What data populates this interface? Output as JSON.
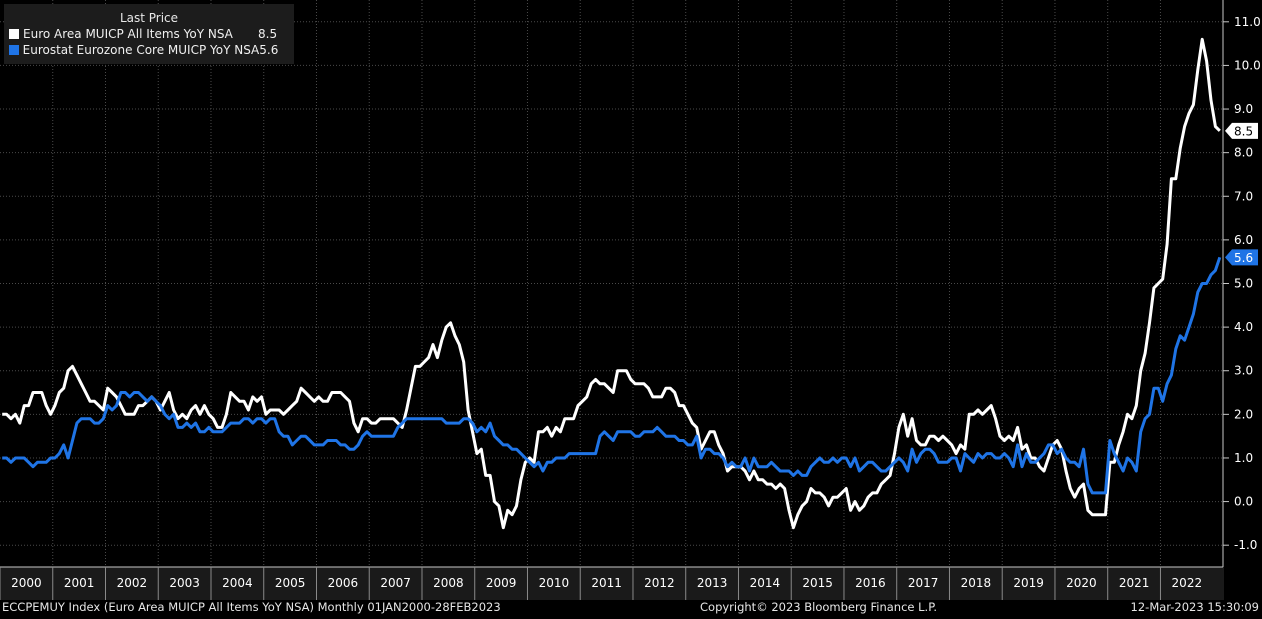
{
  "legend": {
    "title": "Last Price",
    "items": [
      {
        "name": "Euro Area MUICP All Items YoY NSA",
        "value": "8.5",
        "color": "#ffffff"
      },
      {
        "name": "Eurostat Eurozone Core MUICP YoY NSA",
        "value": "5.6",
        "color": "#1f74e6"
      }
    ]
  },
  "footer": {
    "left": "ECCPEMUY Index (Euro Area MUICP All Items YoY NSA)  Monthly 01JAN2000-28FEB2023",
    "center": "Copyright© 2023 Bloomberg Finance L.P.",
    "right": "12-Mar-2023 15:30:09"
  },
  "chart_data": {
    "type": "line",
    "ylim": [
      -1.5,
      11.5
    ],
    "yticks": [
      -1.0,
      0.0,
      1.0,
      2.0,
      3.0,
      4.0,
      5.0,
      6.0,
      7.0,
      8.0,
      9.0,
      10.0,
      11.0
    ],
    "ytick_labels": [
      "-1.0",
      "0.0",
      "1.0",
      "2.0",
      "3.0",
      "4.0",
      "5.0",
      "6.0",
      "7.0",
      "8.0",
      "9.0",
      "10.0",
      "11.0"
    ],
    "x_start": "2000-01",
    "x_end": "2023-02",
    "year_labels": [
      "2000",
      "2001",
      "2002",
      "2003",
      "2004",
      "2005",
      "2006",
      "2007",
      "2008",
      "2009",
      "2010",
      "2011",
      "2012",
      "2013",
      "2014",
      "2015",
      "2016",
      "2017",
      "2018",
      "2019",
      "2020",
      "2021",
      "2022"
    ],
    "series": [
      {
        "name": "Euro Area MUICP All Items YoY NSA",
        "color": "#ffffff",
        "last_label": "8.5",
        "values": [
          2.0,
          2.0,
          1.9,
          2.0,
          1.8,
          2.2,
          2.2,
          2.5,
          2.5,
          2.5,
          2.2,
          2.0,
          2.2,
          2.5,
          2.6,
          3.0,
          3.1,
          2.9,
          2.7,
          2.5,
          2.3,
          2.3,
          2.2,
          2.1,
          2.6,
          2.5,
          2.4,
          2.2,
          2.0,
          2.0,
          2.0,
          2.2,
          2.2,
          2.3,
          2.4,
          2.3,
          2.1,
          2.3,
          2.5,
          2.1,
          1.9,
          2.0,
          1.9,
          2.1,
          2.2,
          2.0,
          2.2,
          2.0,
          1.9,
          1.7,
          1.7,
          2.0,
          2.5,
          2.4,
          2.3,
          2.3,
          2.1,
          2.4,
          2.3,
          2.4,
          2.0,
          2.1,
          2.1,
          2.1,
          2.0,
          2.1,
          2.2,
          2.3,
          2.6,
          2.5,
          2.4,
          2.3,
          2.4,
          2.3,
          2.3,
          2.5,
          2.5,
          2.5,
          2.4,
          2.3,
          1.8,
          1.6,
          1.9,
          1.9,
          1.8,
          1.8,
          1.9,
          1.9,
          1.9,
          1.9,
          1.8,
          1.7,
          2.1,
          2.6,
          3.1,
          3.1,
          3.2,
          3.3,
          3.6,
          3.3,
          3.7,
          4.0,
          4.1,
          3.8,
          3.6,
          3.2,
          2.1,
          1.6,
          1.1,
          1.2,
          0.6,
          0.6,
          0.0,
          -0.1,
          -0.6,
          -0.2,
          -0.3,
          -0.1,
          0.5,
          0.9,
          1.0,
          0.9,
          1.6,
          1.6,
          1.7,
          1.5,
          1.7,
          1.6,
          1.9,
          1.9,
          1.9,
          2.2,
          2.3,
          2.4,
          2.7,
          2.8,
          2.7,
          2.7,
          2.6,
          2.5,
          3.0,
          3.0,
          3.0,
          2.8,
          2.7,
          2.7,
          2.7,
          2.6,
          2.4,
          2.4,
          2.4,
          2.6,
          2.6,
          2.5,
          2.2,
          2.2,
          2.0,
          1.8,
          1.7,
          1.2,
          1.4,
          1.6,
          1.6,
          1.3,
          1.1,
          0.7,
          0.8,
          0.8,
          0.8,
          0.7,
          0.5,
          0.7,
          0.5,
          0.5,
          0.4,
          0.4,
          0.3,
          0.4,
          0.3,
          -0.2,
          -0.6,
          -0.3,
          -0.1,
          0.0,
          0.3,
          0.2,
          0.2,
          0.1,
          -0.1,
          0.1,
          0.1,
          0.2,
          0.3,
          -0.2,
          0.0,
          -0.2,
          -0.1,
          0.1,
          0.2,
          0.2,
          0.4,
          0.5,
          0.6,
          1.1,
          1.7,
          2.0,
          1.5,
          1.9,
          1.4,
          1.3,
          1.3,
          1.5,
          1.5,
          1.4,
          1.5,
          1.4,
          1.3,
          1.1,
          1.3,
          1.2,
          2.0,
          2.0,
          2.1,
          2.0,
          2.1,
          2.2,
          1.9,
          1.5,
          1.4,
          1.5,
          1.4,
          1.7,
          1.2,
          1.3,
          1.0,
          1.0,
          0.8,
          0.7,
          1.0,
          1.3,
          1.4,
          1.2,
          0.7,
          0.3,
          0.1,
          0.3,
          0.4,
          -0.2,
          -0.3,
          -0.3,
          -0.3,
          -0.3,
          0.9,
          0.9,
          1.3,
          1.6,
          2.0,
          1.9,
          2.2,
          3.0,
          3.4,
          4.1,
          4.9,
          5.0,
          5.1,
          5.9,
          7.4,
          7.4,
          8.1,
          8.6,
          8.9,
          9.1,
          9.9,
          10.6,
          10.1,
          9.2,
          8.6,
          8.5
        ]
      },
      {
        "name": "Eurostat Eurozone Core MUICP YoY NSA",
        "color": "#1f74e6",
        "last_label": "5.6",
        "values": [
          1.0,
          1.0,
          0.9,
          1.0,
          1.0,
          1.0,
          0.9,
          0.8,
          0.9,
          0.9,
          0.9,
          1.0,
          1.0,
          1.1,
          1.3,
          1.0,
          1.4,
          1.8,
          1.9,
          1.9,
          1.9,
          1.8,
          1.8,
          1.9,
          2.2,
          2.1,
          2.2,
          2.5,
          2.5,
          2.4,
          2.5,
          2.5,
          2.4,
          2.3,
          2.4,
          2.3,
          2.2,
          2.0,
          1.9,
          2.0,
          1.7,
          1.7,
          1.8,
          1.7,
          1.8,
          1.6,
          1.6,
          1.7,
          1.6,
          1.6,
          1.6,
          1.7,
          1.8,
          1.8,
          1.8,
          1.9,
          1.9,
          1.8,
          1.9,
          1.9,
          1.8,
          1.9,
          1.9,
          1.6,
          1.5,
          1.5,
          1.3,
          1.4,
          1.5,
          1.5,
          1.4,
          1.3,
          1.3,
          1.3,
          1.4,
          1.4,
          1.4,
          1.3,
          1.3,
          1.2,
          1.2,
          1.3,
          1.5,
          1.6,
          1.5,
          1.5,
          1.5,
          1.5,
          1.5,
          1.5,
          1.7,
          1.8,
          1.9,
          1.9,
          1.9,
          1.9,
          1.9,
          1.9,
          1.9,
          1.9,
          1.9,
          1.8,
          1.8,
          1.8,
          1.8,
          1.9,
          1.9,
          1.8,
          1.6,
          1.7,
          1.6,
          1.8,
          1.5,
          1.4,
          1.3,
          1.3,
          1.2,
          1.2,
          1.1,
          1.0,
          0.9,
          0.8,
          0.9,
          0.7,
          0.9,
          0.9,
          1.0,
          1.0,
          1.0,
          1.1,
          1.1,
          1.1,
          1.1,
          1.1,
          1.1,
          1.1,
          1.5,
          1.6,
          1.5,
          1.4,
          1.6,
          1.6,
          1.6,
          1.6,
          1.5,
          1.5,
          1.6,
          1.6,
          1.6,
          1.7,
          1.6,
          1.5,
          1.5,
          1.5,
          1.4,
          1.4,
          1.3,
          1.3,
          1.5,
          1.0,
          1.2,
          1.2,
          1.1,
          1.1,
          1.0,
          0.8,
          0.9,
          0.8,
          0.8,
          1.0,
          0.7,
          1.0,
          0.8,
          0.8,
          0.8,
          0.9,
          0.8,
          0.7,
          0.7,
          0.7,
          0.6,
          0.7,
          0.6,
          0.6,
          0.8,
          0.9,
          1.0,
          0.9,
          0.9,
          1.0,
          0.9,
          1.0,
          1.0,
          0.8,
          1.0,
          0.7,
          0.8,
          0.9,
          0.9,
          0.8,
          0.7,
          0.7,
          0.8,
          0.9,
          1.0,
          0.9,
          0.7,
          1.2,
          0.9,
          1.1,
          1.2,
          1.2,
          1.1,
          0.9,
          0.9,
          0.9,
          1.0,
          1.0,
          0.7,
          1.1,
          1.0,
          0.9,
          1.1,
          1.0,
          1.1,
          1.1,
          1.0,
          1.0,
          1.1,
          1.0,
          0.8,
          1.3,
          0.8,
          1.1,
          0.9,
          0.9,
          1.0,
          1.1,
          1.3,
          1.3,
          1.1,
          1.2,
          1.0,
          0.9,
          0.9,
          0.8,
          1.2,
          0.4,
          0.2,
          0.2,
          0.2,
          0.2,
          1.4,
          1.1,
          0.9,
          0.7,
          1.0,
          0.9,
          0.7,
          1.6,
          1.9,
          2.0,
          2.6,
          2.6,
          2.3,
          2.7,
          2.9,
          3.5,
          3.8,
          3.7,
          4.0,
          4.3,
          4.8,
          5.0,
          5.0,
          5.2,
          5.3,
          5.6
        ]
      }
    ]
  }
}
